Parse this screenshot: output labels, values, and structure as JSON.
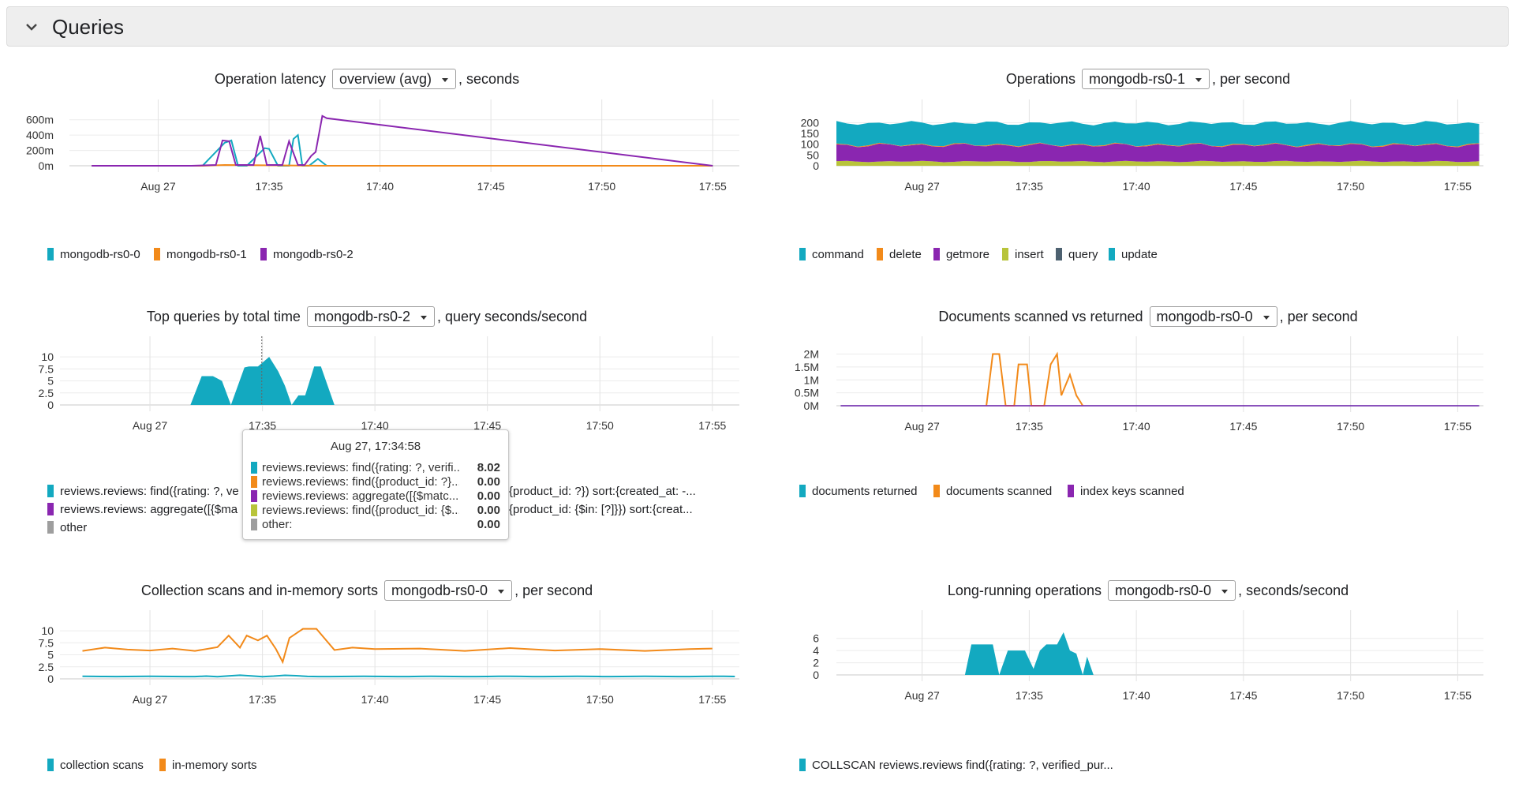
{
  "section": {
    "title": "Queries",
    "icon": "chevron-down-icon"
  },
  "colors": {
    "teal": "#13a9c0",
    "orange": "#f28a1a",
    "purple": "#8a26b0",
    "lime": "#b8c43a",
    "slate": "#4d6170",
    "gray": "#9e9e9e",
    "grid": "#e0e0e0"
  },
  "panels": {
    "latency": {
      "title_prefix": "Operation latency",
      "select": "overview (avg)",
      "title_suffix": ", seconds",
      "legend": [
        "mongodb-rs0-0",
        "mongodb-rs0-1",
        "mongodb-rs0-2"
      ]
    },
    "operations": {
      "title_prefix": "Operations",
      "select": "mongodb-rs0-1",
      "title_suffix": ", per second",
      "legend": [
        "command",
        "delete",
        "getmore",
        "insert",
        "query",
        "update"
      ]
    },
    "topqueries": {
      "title_prefix": "Top queries by total time",
      "select": "mongodb-rs0-2",
      "title_suffix": ", query seconds/second",
      "legend": [
        "reviews.reviews: find({rating: ?, ve",
        "{product_id: ?}) sort:{created_at: -...",
        "reviews.reviews: aggregate([{$ma",
        "{product_id: {$in: [?]}}) sort:{creat...",
        "other"
      ]
    },
    "docs": {
      "title_prefix": "Documents scanned vs returned",
      "select": "mongodb-rs0-0",
      "title_suffix": ", per second",
      "legend": [
        "documents returned",
        "documents scanned",
        "index keys scanned"
      ]
    },
    "collscans": {
      "title_prefix": "Collection scans and in-memory sorts",
      "select": "mongodb-rs0-0",
      "title_suffix": ", per second",
      "legend": [
        "collection scans",
        "in-memory sorts"
      ]
    },
    "longrunning": {
      "title_prefix": "Long-running operations",
      "select": "mongodb-rs0-0",
      "title_suffix": ", seconds/second",
      "legend": [
        "COLLSCAN reviews.reviews find({rating: ?, verified_pur..."
      ]
    }
  },
  "tooltip": {
    "title": "Aug 27, 17:34:58",
    "rows": [
      {
        "label": "reviews.reviews: find({rating: ?, verifi...",
        "value": "8.02",
        "color": "#13a9c0"
      },
      {
        "label": "reviews.reviews: find({product_id: ?}...",
        "value": "0.00",
        "color": "#f28a1a"
      },
      {
        "label": "reviews.reviews: aggregate([{$matc...",
        "value": "0.00",
        "color": "#8a26b0"
      },
      {
        "label": "reviews.reviews: find({product_id: {$...",
        "value": "0.00",
        "color": "#b8c43a"
      },
      {
        "label": "other:",
        "value": "0.00",
        "color": "#9e9e9e"
      }
    ]
  },
  "chart_data": [
    {
      "id": "latency",
      "type": "line",
      "title": "Operation latency overview (avg), seconds",
      "x_ticks": [
        "Aug 27",
        "17:35",
        "17:40",
        "17:45",
        "17:50",
        "17:55"
      ],
      "y_ticks": [
        "0m",
        "200m",
        "400m",
        "600m"
      ],
      "ylim": [
        0,
        700
      ],
      "series": [
        {
          "name": "mongodb-rs0-0",
          "color": "#13a9c0",
          "x": [
            "17:27",
            "17:32",
            "17:33",
            "17:33.3",
            "17:33.6",
            "17:34",
            "17:34.8",
            "17:35",
            "17:35.4",
            "17:35.9",
            "17:36.1",
            "17:36.3",
            "17:36.5",
            "17:36.8",
            "17:37.2",
            "17:37.6",
            "17:55"
          ],
          "values": [
            0,
            0,
            300,
            330,
            0,
            0,
            230,
            220,
            0,
            0,
            350,
            400,
            0,
            0,
            90,
            0,
            0
          ]
        },
        {
          "name": "mongodb-rs0-1",
          "color": "#f28a1a",
          "x": [
            "17:27",
            "17:32",
            "17:33",
            "17:37.6",
            "17:55"
          ],
          "values": [
            0,
            0,
            10,
            0,
            0
          ]
        },
        {
          "name": "mongodb-rs0-2",
          "color": "#8a26b0",
          "x": [
            "17:27",
            "17:31.5",
            "17:32.6",
            "17:32.9",
            "17:33.2",
            "17:33.5",
            "17:34.3",
            "17:34.6",
            "17:34.9",
            "17:35.6",
            "17:35.9",
            "17:36.3",
            "17:36.6",
            "17:36.9",
            "17:37.1",
            "17:37.4",
            "17:37.6",
            "17:55"
          ],
          "values": [
            0,
            0,
            10,
            330,
            320,
            10,
            10,
            390,
            10,
            10,
            320,
            10,
            10,
            130,
            180,
            650,
            620,
            0
          ]
        }
      ]
    },
    {
      "id": "operations",
      "type": "area",
      "title": "Operations mongodb-rs0-1, per second",
      "x_ticks": [
        "Aug 27",
        "17:35",
        "17:40",
        "17:45",
        "17:50",
        "17:55"
      ],
      "y_ticks": [
        "0",
        "50",
        "100",
        "150",
        "200"
      ],
      "ylim": [
        0,
        220
      ],
      "stacked": true,
      "series": [
        {
          "name": "insert",
          "color": "#b8c43a",
          "approx_value": 20
        },
        {
          "name": "getmore",
          "color": "#8a26b0",
          "approx_value": 75
        },
        {
          "name": "delete",
          "color": "#f28a1a",
          "approx_value": 3
        },
        {
          "name": "command",
          "color": "#13a9c0",
          "approx_value": 100
        },
        {
          "name": "query",
          "color": "#4d6170",
          "approx_value": 0
        },
        {
          "name": "update",
          "color": "#13a9c0",
          "approx_value": 0
        }
      ]
    },
    {
      "id": "topqueries",
      "type": "area",
      "title": "Top queries by total time mongodb-rs0-2, query seconds/second",
      "x_ticks": [
        "Aug 27",
        "17:35",
        "17:40",
        "17:45",
        "17:50",
        "17:55"
      ],
      "y_ticks": [
        "0",
        "2.5",
        "5",
        "7.5",
        "10"
      ],
      "ylim": [
        0,
        11
      ],
      "series": [
        {
          "name": "reviews.reviews: find({rating: ?, ve",
          "color": "#13a9c0",
          "x": [
            "17:31.8",
            "17:32.3",
            "17:32.8",
            "17:33.2",
            "17:33.6",
            "17:34.2",
            "17:34.4",
            "17:34.8",
            "17:35.3",
            "17:35.7",
            "17:36",
            "17:36.3",
            "17:36.6",
            "17:36.9",
            "17:37.3",
            "17:37.6",
            "17:38.2"
          ],
          "values": [
            0,
            6,
            6,
            5,
            0,
            7.8,
            8,
            8,
            10,
            7,
            4,
            0,
            2,
            2,
            8,
            8,
            0
          ]
        }
      ]
    },
    {
      "id": "docs",
      "type": "line",
      "title": "Documents scanned vs returned mongodb-rs0-0, per second",
      "x_ticks": [
        "Aug 27",
        "17:35",
        "17:40",
        "17:45",
        "17:50",
        "17:55"
      ],
      "y_ticks": [
        "0M",
        "0.5M",
        "1M",
        "1.5M",
        "2M"
      ],
      "ylim": [
        0,
        2200000
      ],
      "series": [
        {
          "name": "documents returned",
          "color": "#13a9c0",
          "values_const": 0
        },
        {
          "name": "documents scanned",
          "color": "#f28a1a",
          "x": [
            "17:33",
            "17:33.3",
            "17:33.6",
            "17:33.9",
            "17:34.3",
            "17:34.5",
            "17:34.9",
            "17:35.1",
            "17:35.7",
            "17:36",
            "17:36.3",
            "17:36.5",
            "17:36.9",
            "17:37.2",
            "17:37.5"
          ],
          "values": [
            0,
            2000000,
            2000000,
            0,
            0,
            1600000,
            1600000,
            0,
            0,
            1600000,
            2000000,
            400000,
            1200000,
            400000,
            0
          ]
        },
        {
          "name": "index keys scanned",
          "color": "#8a26b0",
          "values_const": 0
        }
      ]
    },
    {
      "id": "collscans",
      "type": "line",
      "title": "Collection scans and in-memory sorts mongodb-rs0-0, per second",
      "x_ticks": [
        "Aug 27",
        "17:35",
        "17:40",
        "17:45",
        "17:50",
        "17:55"
      ],
      "y_ticks": [
        "0",
        "2.5",
        "5",
        "7.5",
        "10"
      ],
      "ylim": [
        0,
        11
      ],
      "series": [
        {
          "name": "collection scans",
          "color": "#13a9c0",
          "approx_value": 0.5
        },
        {
          "name": "in-memory sorts",
          "color": "#f28a1a",
          "x": [
            "17:27",
            "17:28",
            "17:29",
            "17:30",
            "17:31",
            "17:32",
            "17:33",
            "17:33.5",
            "17:34",
            "17:34.3",
            "17:34.8",
            "17:35.2",
            "17:35.6",
            "17:35.9",
            "17:36.2",
            "17:36.8",
            "17:37.4",
            "17:38.2",
            "17:39",
            "17:40",
            "17:42",
            "17:44",
            "17:46",
            "17:48",
            "17:50",
            "17:52",
            "17:54",
            "17:55"
          ],
          "values": [
            5.8,
            6.5,
            6.1,
            5.9,
            6.3,
            5.8,
            6.6,
            9,
            6.5,
            9,
            8,
            9,
            6.2,
            3.5,
            8.5,
            10.4,
            10.4,
            6,
            6.5,
            6.2,
            6.3,
            5.8,
            6.4,
            5.9,
            6.2,
            5.8,
            6.2,
            6.3
          ]
        }
      ]
    },
    {
      "id": "longrunning",
      "type": "area",
      "title": "Long-running operations mongodb-rs0-0, seconds/second",
      "x_ticks": [
        "Aug 27",
        "17:35",
        "17:40",
        "17:45",
        "17:50",
        "17:55"
      ],
      "y_ticks": [
        "0",
        "2",
        "4",
        "6"
      ],
      "ylim": [
        0,
        7
      ],
      "series": [
        {
          "name": "COLLSCAN reviews.reviews find({rating: ?, verified_pur...",
          "color": "#13a9c0",
          "x": [
            "17:32",
            "17:32.3",
            "17:33.3",
            "17:33.6",
            "17:34",
            "17:34.8",
            "17:35.2",
            "17:35.5",
            "17:35.8",
            "17:36.3",
            "17:36.6",
            "17:36.9",
            "17:37.2",
            "17:37.5",
            "17:37.7",
            "17:38",
            "17:38.2"
          ],
          "values": [
            0,
            5,
            5,
            0,
            4,
            4,
            1,
            4,
            5,
            5,
            7,
            4,
            3.5,
            0,
            3,
            0,
            0
          ]
        }
      ]
    }
  ]
}
